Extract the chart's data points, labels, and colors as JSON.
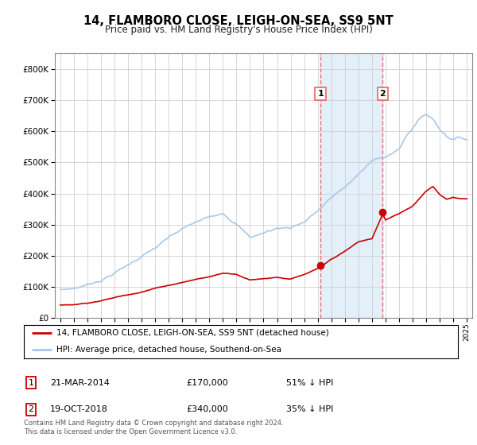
{
  "title": "14, FLAMBORO CLOSE, LEIGH-ON-SEA, SS9 5NT",
  "subtitle": "Price paid vs. HM Land Registry's House Price Index (HPI)",
  "hpi_label": "HPI: Average price, detached house, Southend-on-Sea",
  "property_label": "14, FLAMBORO CLOSE, LEIGH-ON-SEA, SS9 5NT (detached house)",
  "hpi_color": "#aac8e8",
  "property_color": "#cc0000",
  "marker_color": "#cc0000",
  "vline_color": "#e87070",
  "shade_color": "#daeaf7",
  "sale1_year": 2014.22,
  "sale1_price": 170000,
  "sale2_year": 2018.8,
  "sale2_price": 340000,
  "ylim_min": 0,
  "ylim_max": 850000,
  "yticks": [
    0,
    100000,
    200000,
    300000,
    400000,
    500000,
    600000,
    700000,
    800000
  ],
  "footnote": "Contains HM Land Registry data © Crown copyright and database right 2024.\nThis data is licensed under the Open Government Licence v3.0.",
  "table_entries": [
    {
      "num": "1",
      "date": "21-MAR-2014",
      "price": "£170,000",
      "pct": "51% ↓ HPI"
    },
    {
      "num": "2",
      "date": "19-OCT-2018",
      "price": "£340,000",
      "pct": "35% ↓ HPI"
    }
  ],
  "hpi_anchors_x": [
    1995,
    1996,
    1997,
    1998,
    1999,
    2000,
    2001,
    2002,
    2003,
    2004,
    2005,
    2006,
    2007,
    2008,
    2009,
    2010,
    2011,
    2012,
    2013,
    2014,
    2015,
    2016,
    2017,
    2018,
    2018.5,
    2019,
    2019.5,
    2020,
    2020.5,
    2021,
    2021.5,
    2022,
    2022.5,
    2023,
    2023.5,
    2024,
    2024.5,
    2025
  ],
  "hpi_anchors_y": [
    90000,
    95000,
    108000,
    125000,
    150000,
    175000,
    205000,
    230000,
    260000,
    285000,
    305000,
    320000,
    340000,
    310000,
    265000,
    280000,
    295000,
    300000,
    320000,
    355000,
    395000,
    430000,
    470000,
    510000,
    525000,
    530000,
    540000,
    550000,
    590000,
    620000,
    650000,
    665000,
    650000,
    620000,
    600000,
    590000,
    595000,
    590000
  ],
  "prop_anchors_x": [
    1995,
    1996,
    1997,
    1998,
    1999,
    2000,
    2001,
    2002,
    2003,
    2004,
    2005,
    2006,
    2007,
    2008,
    2009,
    2010,
    2011,
    2012,
    2013,
    2014.22,
    2015,
    2016,
    2017,
    2018,
    2018.8,
    2019,
    2020,
    2021,
    2022,
    2022.5,
    2023,
    2023.5,
    2024,
    2024.5,
    2025
  ],
  "prop_anchors_y": [
    42000,
    44000,
    50000,
    58000,
    68000,
    78000,
    88000,
    100000,
    110000,
    120000,
    130000,
    138000,
    150000,
    148000,
    130000,
    135000,
    140000,
    135000,
    148000,
    170000,
    195000,
    220000,
    250000,
    260000,
    340000,
    320000,
    340000,
    365000,
    415000,
    430000,
    405000,
    390000,
    395000,
    390000,
    390000
  ]
}
